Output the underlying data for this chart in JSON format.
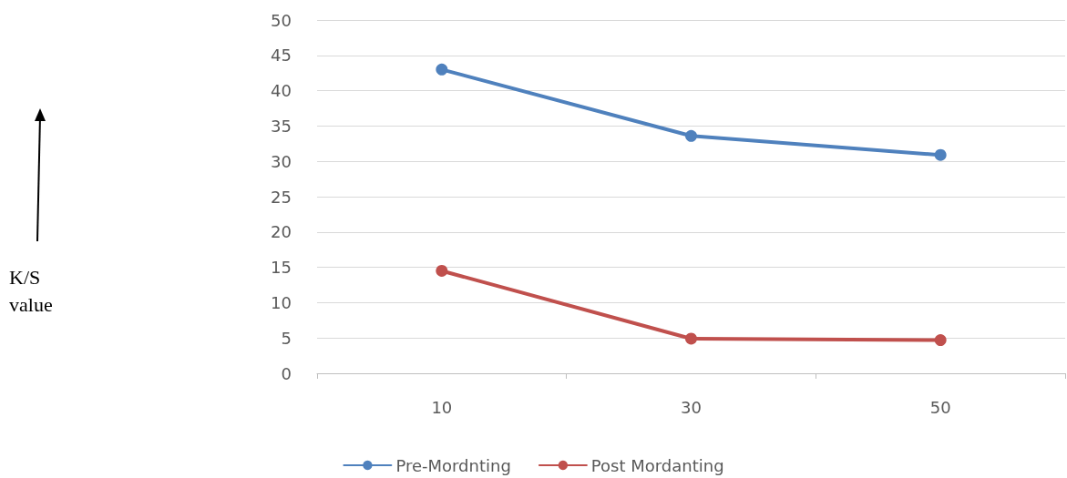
{
  "chart_data": {
    "type": "line",
    "annotations": [
      "K/S value"
    ],
    "categories": [
      "10",
      "30",
      "50"
    ],
    "series": [
      {
        "name": "Pre-Mordnting",
        "color": "#4f81bd",
        "values": [
          43,
          33.6,
          30.9
        ]
      },
      {
        "name": "Post Mordanting",
        "color": "#c0504d",
        "values": [
          14.5,
          4.9,
          4.7
        ]
      }
    ],
    "ylim": [
      0,
      50
    ],
    "yticks": [
      0,
      5,
      10,
      15,
      20,
      25,
      30,
      35,
      40,
      45,
      50
    ],
    "grid": "y",
    "legend": "bottom",
    "marker": "circle",
    "line_style": "solid"
  }
}
